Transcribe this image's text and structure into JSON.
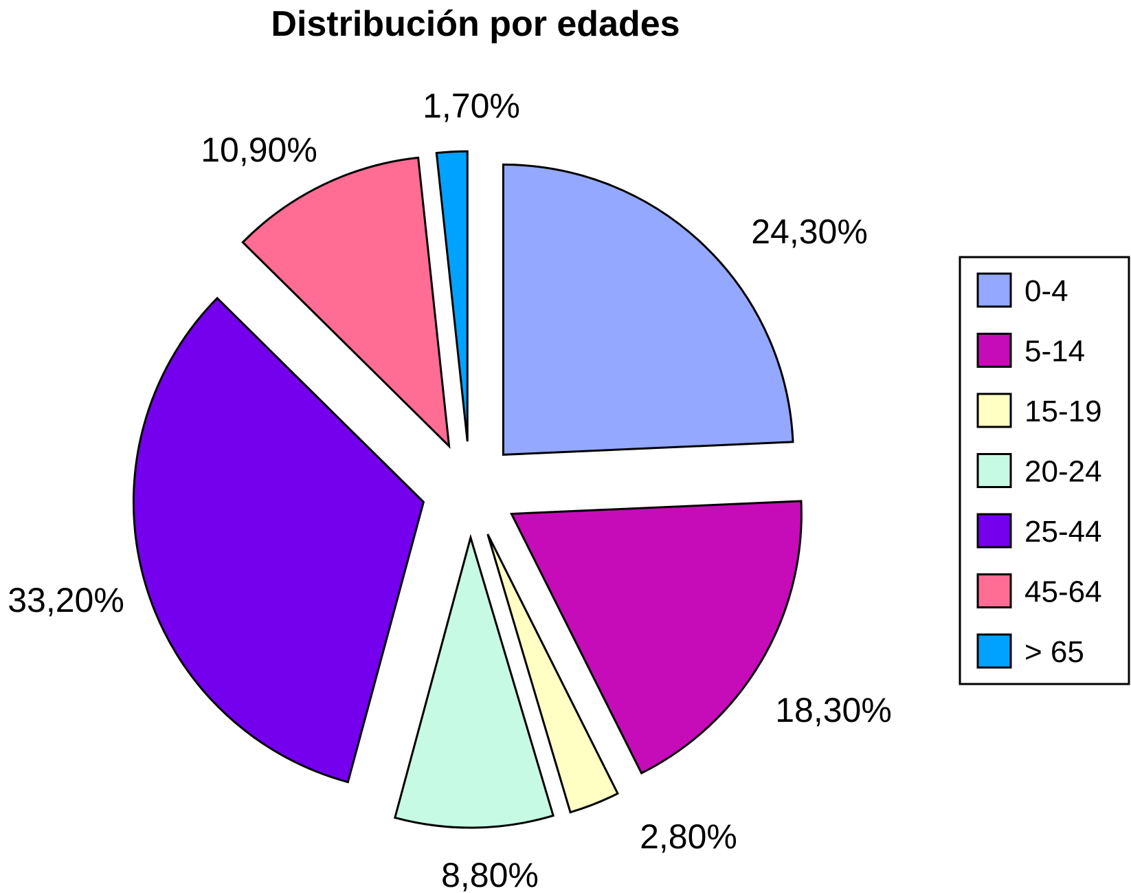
{
  "chart_data": {
    "type": "pie",
    "title": "Distribución por edades",
    "categories": [
      "0-4",
      "5-14",
      "15-19",
      "20-24",
      "25-44",
      "45-64",
      "> 65"
    ],
    "values": [
      24.3,
      18.3,
      2.8,
      8.8,
      33.2,
      10.9,
      1.7
    ],
    "value_labels": [
      "24,30%",
      "18,30%",
      "2,80%",
      "8,80%",
      "33,20%",
      "10,90%",
      "1,70%"
    ],
    "colors": [
      "#94a8ff",
      "#c60cb8",
      "#ffffc4",
      "#c6fae4",
      "#7400ee",
      "#ff6c94",
      "#00a2ff"
    ],
    "exploded": true,
    "legend_position": "right"
  }
}
